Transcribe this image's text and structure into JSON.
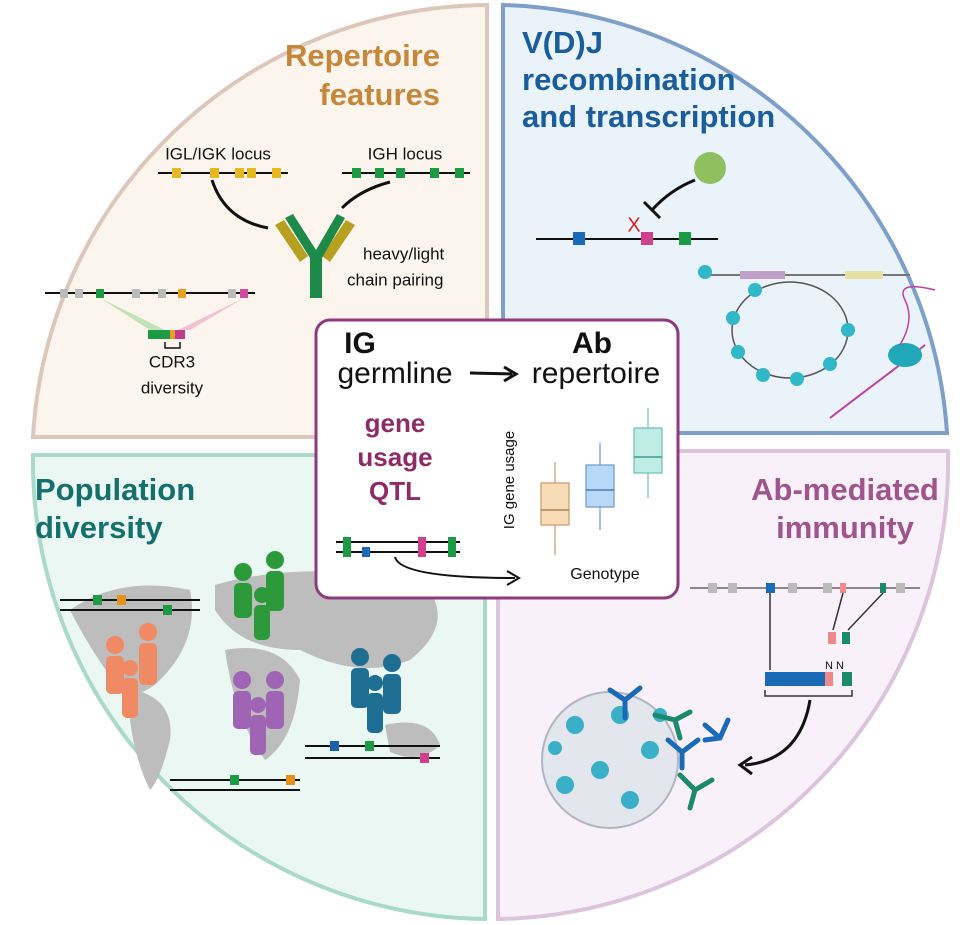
{
  "repertoire_features": {
    "title": [
      "Repertoire",
      "features"
    ],
    "igl_igk_locus": "IGL/IGK locus",
    "igh_locus": "IGH locus",
    "pairing": [
      "heavy/light",
      "chain pairing"
    ],
    "cdr3": [
      "CDR3",
      "diversity"
    ]
  },
  "vdj": {
    "title": [
      "V(D)J",
      "recombination",
      "and transcription"
    ],
    "excision_mark": "X"
  },
  "population": {
    "title": [
      "Population",
      "diversity"
    ]
  },
  "ab_immunity": {
    "title": [
      "Ab-mediated",
      "immunity"
    ],
    "junction_labels": [
      "N",
      "N"
    ]
  },
  "center": {
    "from": [
      "IG",
      "germline"
    ],
    "to": [
      "Ab",
      "repertoire"
    ],
    "qtl": [
      "gene",
      "usage",
      "QTL"
    ],
    "y_axis": "IG gene usage",
    "x_axis": "Genotype"
  }
}
